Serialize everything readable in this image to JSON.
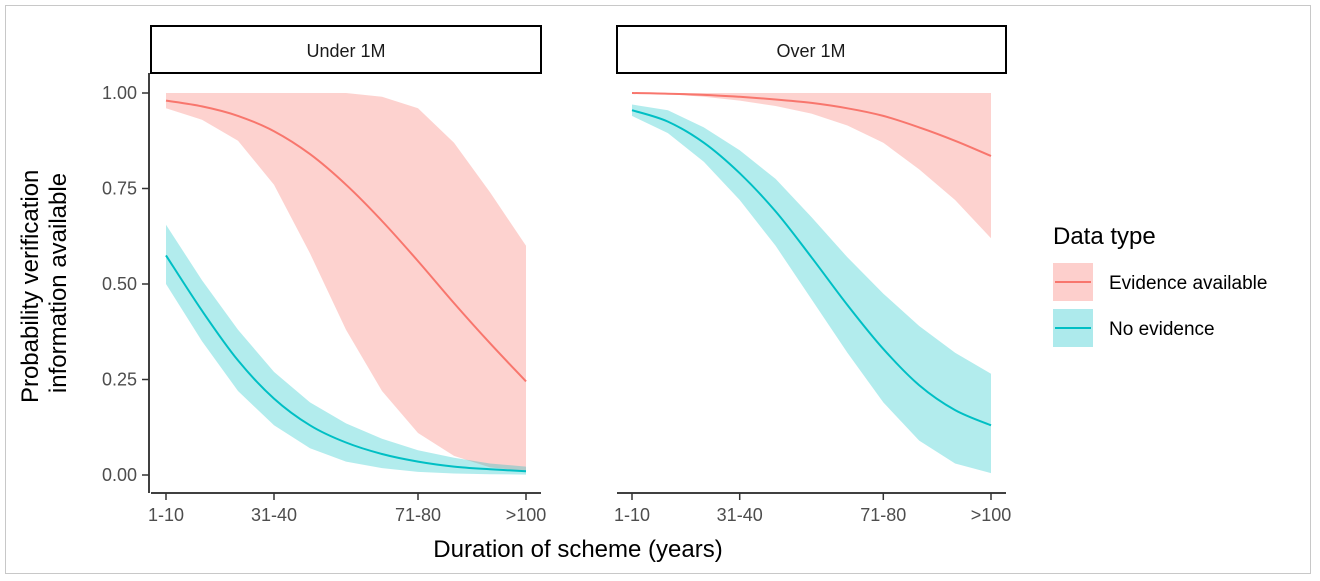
{
  "chart_data": {
    "type": "line",
    "xlabel": "Duration of scheme (years)",
    "ylabel": [
      "Probability verification",
      "information available"
    ],
    "ylim": [
      0,
      1
    ],
    "y_ticks": [
      "0.00",
      "0.25",
      "0.50",
      "0.75",
      "1.00"
    ],
    "y_tick_values": [
      0,
      0.25,
      0.5,
      0.75,
      1.0
    ],
    "x_ticks": [
      "1-10",
      "31-40",
      "71-80",
      ">100"
    ],
    "x_tick_values": [
      1,
      4,
      8,
      11
    ],
    "xlim": [
      1,
      11
    ],
    "legend": {
      "title": "Data type",
      "position": "right",
      "items": [
        {
          "label": "Evidence available",
          "color": "#F8766D",
          "fill": "#F8766D"
        },
        {
          "label": "No evidence",
          "color": "#00BFC4",
          "fill": "#00BFC4"
        }
      ]
    },
    "facets": [
      {
        "label": "Under 1M",
        "series": [
          {
            "name": "Evidence available",
            "color": "#F8766D",
            "x": [
              1,
              2,
              3,
              4,
              5,
              6,
              7,
              8,
              9,
              10,
              11
            ],
            "y": [
              0.98,
              0.965,
              0.94,
              0.9,
              0.84,
              0.76,
              0.665,
              0.56,
              0.45,
              0.345,
              0.245
            ],
            "lower": [
              0.96,
              0.93,
              0.875,
              0.76,
              0.58,
              0.38,
              0.22,
              0.11,
              0.05,
              0.02,
              0.01
            ],
            "upper": [
              1.0,
              1.0,
              1.0,
              1.0,
              1.0,
              1.0,
              0.99,
              0.96,
              0.87,
              0.74,
              0.6
            ]
          },
          {
            "name": "No evidence",
            "color": "#00BFC4",
            "x": [
              1,
              2,
              3,
              4,
              5,
              6,
              7,
              8,
              9,
              10,
              11
            ],
            "y": [
              0.575,
              0.43,
              0.3,
              0.2,
              0.13,
              0.085,
              0.055,
              0.035,
              0.022,
              0.015,
              0.01
            ],
            "lower": [
              0.5,
              0.35,
              0.22,
              0.13,
              0.07,
              0.035,
              0.018,
              0.008,
              0.004,
              0.002,
              0.001
            ],
            "upper": [
              0.655,
              0.51,
              0.38,
              0.27,
              0.19,
              0.135,
              0.095,
              0.065,
              0.045,
              0.03,
              0.022
            ]
          }
        ]
      },
      {
        "label": "Over 1M",
        "series": [
          {
            "name": "Evidence available",
            "color": "#F8766D",
            "x": [
              1,
              2,
              3,
              4,
              5,
              6,
              7,
              8,
              9,
              10,
              11
            ],
            "y": [
              1.0,
              0.998,
              0.995,
              0.99,
              0.983,
              0.974,
              0.96,
              0.94,
              0.91,
              0.875,
              0.835
            ],
            "lower": [
              1.0,
              0.997,
              0.99,
              0.98,
              0.966,
              0.946,
              0.915,
              0.87,
              0.8,
              0.72,
              0.62
            ],
            "upper": [
              1.0,
              1.0,
              1.0,
              1.0,
              1.0,
              1.0,
              1.0,
              1.0,
              1.0,
              1.0,
              1.0
            ]
          },
          {
            "name": "No evidence",
            "color": "#00BFC4",
            "x": [
              1,
              2,
              3,
              4,
              5,
              6,
              7,
              8,
              9,
              10,
              11
            ],
            "y": [
              0.955,
              0.925,
              0.87,
              0.79,
              0.69,
              0.57,
              0.445,
              0.33,
              0.235,
              0.17,
              0.13
            ],
            "lower": [
              0.94,
              0.895,
              0.82,
              0.72,
              0.6,
              0.46,
              0.32,
              0.19,
              0.09,
              0.03,
              0.005
            ],
            "upper": [
              0.97,
              0.955,
              0.91,
              0.85,
              0.775,
              0.675,
              0.57,
              0.475,
              0.39,
              0.32,
              0.265
            ]
          }
        ]
      }
    ]
  }
}
